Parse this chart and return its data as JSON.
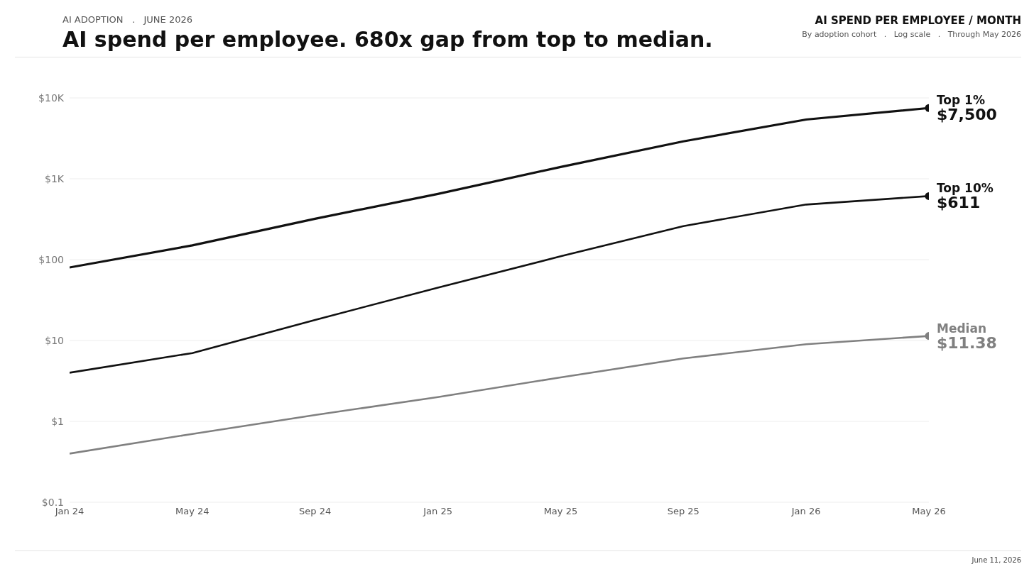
{
  "chart_data": {
    "type": "line",
    "title": "AI spend per employee. 680x gap from top to median.",
    "subtitle": "AI ADOPTION   .   JUNE 2026",
    "annotations": [
      "AI SPEND PER EMPLOYEE / MONTH",
      "By adoption cohort   .   Log scale   .   Through May 2026",
      "June 11, 2026"
    ],
    "categories": [
      "Jan 24",
      "May 24",
      "Sep 24",
      "Jan 25",
      "May 25",
      "Sep 25",
      "Jan 26",
      "May 26"
    ],
    "series": [
      {
        "name": "Top 1%",
        "color": "#111111",
        "values": [
          80,
          150,
          320,
          650,
          1400,
          2900,
          5400,
          7500
        ],
        "value_labels": [
          null,
          null,
          null,
          null,
          null,
          null,
          null,
          "$7,500"
        ]
      },
      {
        "name": "Top 10%",
        "color": "#111111",
        "values": [
          4,
          7,
          18,
          45,
          110,
          260,
          480,
          611
        ],
        "value_labels": [
          null,
          null,
          null,
          null,
          null,
          null,
          null,
          "$611"
        ]
      },
      {
        "name": "Median",
        "color": "#808080",
        "values": [
          0.4,
          0.7,
          1.2,
          2,
          3.5,
          6,
          9,
          11.38
        ],
        "value_labels": [
          null,
          null,
          null,
          null,
          null,
          null,
          null,
          "$11.38"
        ]
      }
    ],
    "log": "y",
    "ylim": [
      0.1,
      10000
    ],
    "yticks": [
      {
        "value": 0.1,
        "label": "$0.1"
      },
      {
        "value": 1,
        "label": "$1"
      },
      {
        "value": 10,
        "label": "$10"
      },
      {
        "value": 100,
        "label": "$100"
      },
      {
        "value": 1000,
        "label": "$1K"
      },
      {
        "value": 10000,
        "label": "$10K"
      }
    ],
    "grid": "y",
    "legend": false
  }
}
